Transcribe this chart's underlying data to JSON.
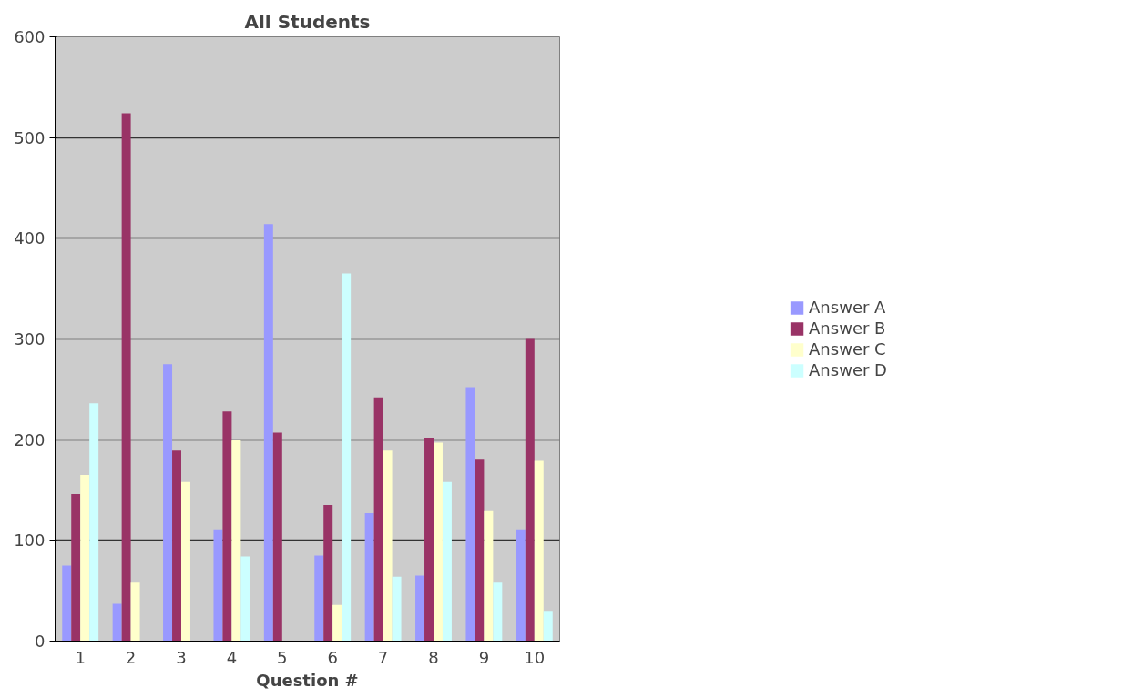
{
  "chart_data": {
    "type": "bar",
    "title": "All Students",
    "xlabel": "Question #",
    "categories": [
      "1",
      "2",
      "3",
      "4",
      "5",
      "6",
      "7",
      "8",
      "9",
      "10"
    ],
    "series": [
      {
        "name": "Answer A",
        "color": "#9999ff",
        "values": [
          75,
          37,
          275,
          111,
          414,
          85,
          127,
          65,
          252,
          111
        ]
      },
      {
        "name": "Answer B",
        "color": "#993366",
        "values": [
          146,
          524,
          189,
          228,
          207,
          135,
          242,
          202,
          181,
          301
        ]
      },
      {
        "name": "Answer C",
        "color": "#ffffcc",
        "values": [
          165,
          58,
          158,
          200,
          0,
          36,
          189,
          197,
          130,
          179
        ]
      },
      {
        "name": "Answer D",
        "color": "#ccffff",
        "values": [
          236,
          0,
          0,
          84,
          0,
          365,
          64,
          158,
          58,
          30
        ]
      }
    ],
    "ylim": [
      0,
      600
    ],
    "yticks": [
      0,
      100,
      200,
      300,
      400,
      500,
      600
    ],
    "grid": "y",
    "legend": "right"
  }
}
